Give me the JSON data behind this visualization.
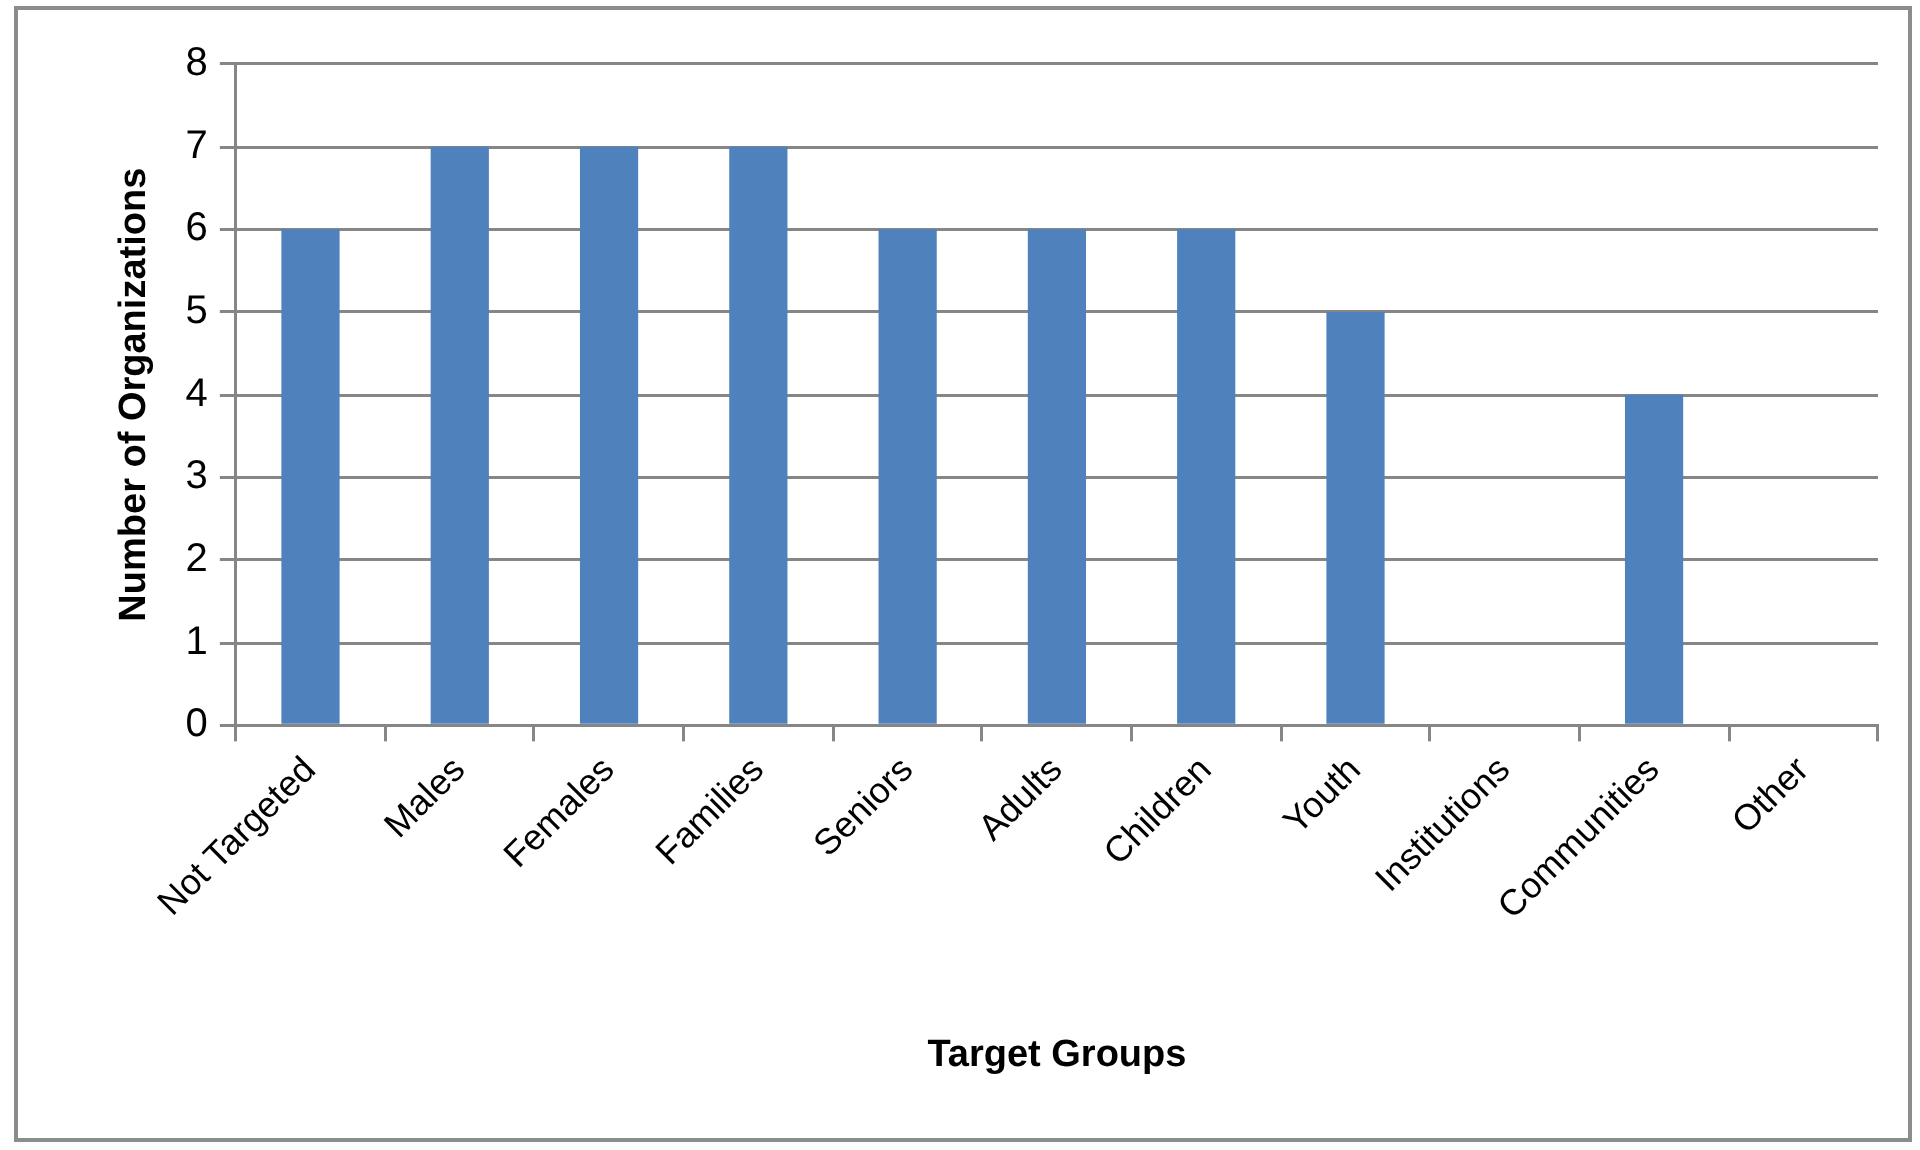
{
  "chart_data": {
    "type": "bar",
    "xlabel": "Target Groups",
    "ylabel": "Number of Organizations",
    "categories": [
      "Not Targeted",
      "Males",
      "Females",
      "Families",
      "Seniors",
      "Adults",
      "Children",
      "Youth",
      "Institutions",
      "Communities",
      "Other"
    ],
    "values": [
      6,
      7,
      7,
      7,
      6,
      6,
      6,
      5,
      0,
      4,
      0
    ],
    "color": "#4f81bd",
    "ylim": [
      0,
      8
    ],
    "yticks": [
      0,
      1,
      2,
      3,
      4,
      5,
      6,
      7,
      8
    ],
    "grid": "y"
  }
}
